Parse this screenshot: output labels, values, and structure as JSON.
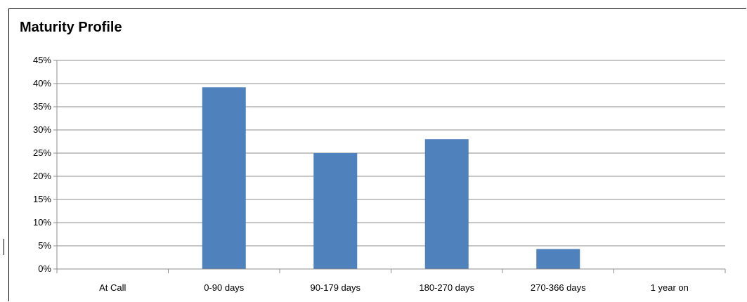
{
  "chart_data": {
    "type": "bar",
    "title": "Maturity Profile",
    "xlabel": "",
    "ylabel": "",
    "categories": [
      "At Call",
      "0-90 days",
      "90-179 days",
      "180-270 days",
      "270-366 days",
      "1 year on"
    ],
    "values": [
      0,
      39.2,
      25,
      28,
      4.3,
      0
    ],
    "y_tick_labels": [
      "0%",
      "5%",
      "10%",
      "15%",
      "20%",
      "25%",
      "30%",
      "35%",
      "40%",
      "45%"
    ],
    "ylim": [
      0,
      45
    ],
    "ytick_step": 5,
    "grid": true,
    "legend": "none",
    "bar_color": "#4f81bd"
  }
}
